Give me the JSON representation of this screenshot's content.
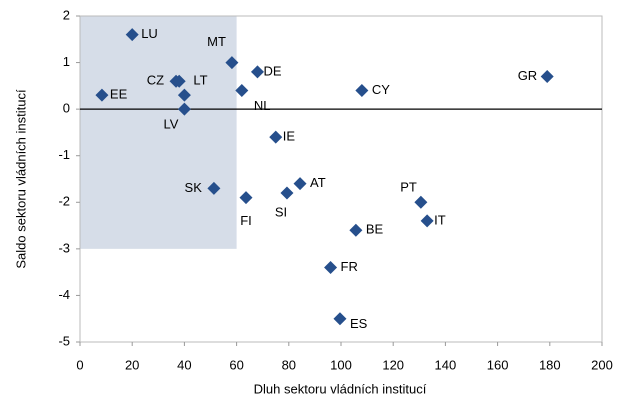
{
  "chart_data": {
    "type": "scatter",
    "x_label": "Dluh sektoru vládních institucí",
    "y_label": "Saldo sektoru vládních institucí",
    "color": "#264f8c",
    "region": {
      "x": [
        0,
        60
      ],
      "y": [
        -3,
        2
      ],
      "color": "#d6dde8"
    },
    "x": [
      20,
      58.2,
      68,
      36.8,
      38,
      40,
      8.4,
      62,
      40,
      108,
      179,
      75,
      51.3,
      63.6,
      79.3,
      84.3,
      130.6,
      133,
      105.7,
      96,
      99.6
    ],
    "values": [
      1.6,
      1.0,
      0.8,
      0.6,
      0.6,
      0.3,
      0.3,
      0.4,
      0.0,
      0.4,
      0.7,
      -0.6,
      -1.7,
      -1.9,
      -1.8,
      -1.6,
      -2.0,
      -2.4,
      -2.6,
      -3.4,
      -4.5
    ],
    "labels": [
      "LU",
      "MT",
      "DE",
      "CZ",
      null,
      "LT",
      "EE",
      "NL",
      "LV",
      "CY",
      "GR",
      "IE",
      "SK",
      "FI",
      "SI",
      "AT",
      "PT",
      "IT",
      "BE",
      "FR",
      "ES"
    ],
    "xlim": [
      0,
      200
    ],
    "xticks": [
      0,
      20,
      40,
      60,
      80,
      100,
      120,
      140,
      160,
      180,
      200
    ],
    "ylim": [
      -5,
      2
    ],
    "yticks": [
      -5,
      -4,
      -3,
      -2,
      -1,
      0,
      1,
      2
    ]
  }
}
